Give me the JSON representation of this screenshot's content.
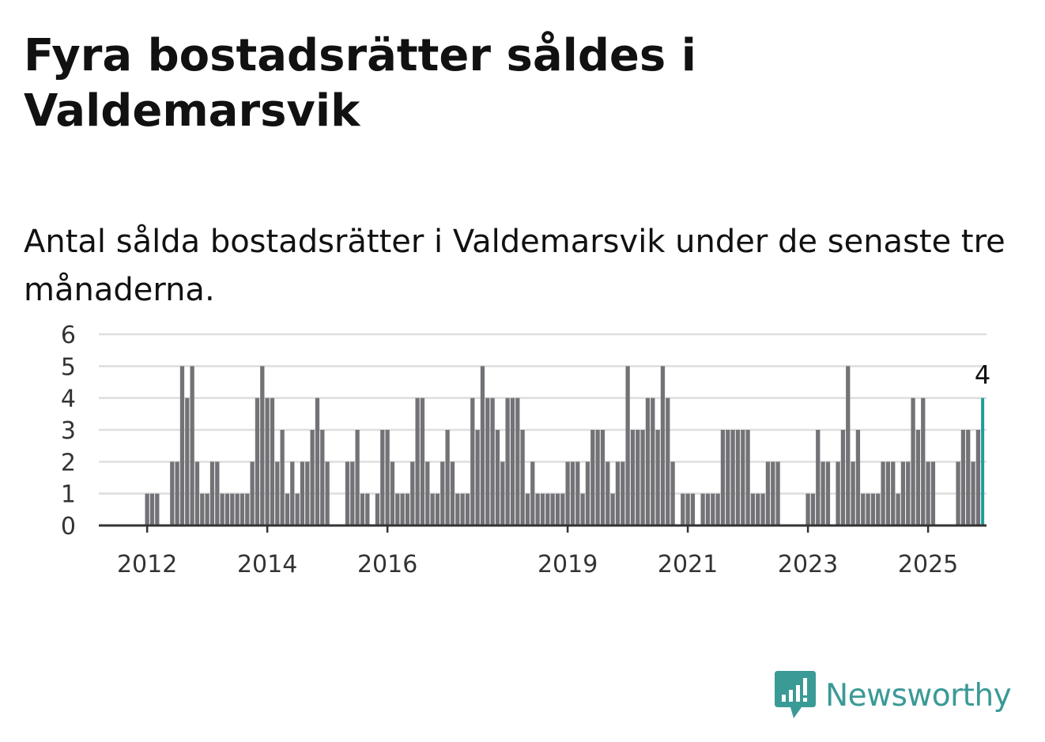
{
  "title": "Fyra bostadsrätter såldes i Valdemarsvik",
  "subtitle": "Antal sålda bostadsrätter i Valdemarsvik under de senaste tre månaderna.",
  "brand": {
    "name": "Newsworthy",
    "icon": "newsworthy-logo-icon",
    "color": "#3a9a96"
  },
  "chart_data": {
    "type": "bar",
    "x_start": "2011-04",
    "x_interval": "month",
    "values": [
      0,
      0,
      0,
      0,
      0,
      0,
      0,
      0,
      0,
      1,
      1,
      1,
      0,
      0,
      2,
      2,
      5,
      4,
      5,
      2,
      1,
      1,
      2,
      2,
      1,
      1,
      1,
      1,
      1,
      1,
      2,
      4,
      5,
      4,
      4,
      2,
      3,
      1,
      2,
      1,
      2,
      2,
      3,
      4,
      3,
      2,
      0,
      0,
      0,
      2,
      2,
      3,
      1,
      1,
      0,
      1,
      3,
      3,
      2,
      1,
      1,
      1,
      2,
      4,
      4,
      2,
      1,
      1,
      2,
      3,
      2,
      1,
      1,
      1,
      4,
      3,
      5,
      4,
      4,
      3,
      2,
      4,
      4,
      4,
      3,
      1,
      2,
      1,
      1,
      1,
      1,
      1,
      1,
      2,
      2,
      2,
      1,
      2,
      3,
      3,
      3,
      2,
      1,
      2,
      2,
      5,
      3,
      3,
      3,
      4,
      4,
      3,
      5,
      4,
      2,
      0,
      1,
      1,
      1,
      0,
      1,
      1,
      1,
      1,
      3,
      3,
      3,
      3,
      3,
      3,
      1,
      1,
      1,
      2,
      2,
      2,
      0,
      0,
      0,
      0,
      0,
      1,
      1,
      3,
      2,
      2,
      0,
      2,
      3,
      5,
      2,
      3,
      1,
      1,
      1,
      1,
      2,
      2,
      2,
      1,
      2,
      2,
      4,
      3,
      4,
      2,
      2,
      0,
      0,
      0,
      0,
      2,
      3,
      3,
      2,
      3,
      4
    ],
    "x_ticks": [
      "2012",
      "2014",
      "2016",
      "2019",
      "2021",
      "2023",
      "2025"
    ],
    "x_tick_months": [
      "2012-01",
      "2014-01",
      "2016-01",
      "2019-01",
      "2021-01",
      "2023-01",
      "2025-01"
    ],
    "y_ticks": [
      0,
      1,
      2,
      3,
      4,
      5,
      6
    ],
    "ylim": [
      0,
      6
    ],
    "grid": true,
    "bar_color": "#737277",
    "highlight_color": "#1e9e9a",
    "highlight_last": true,
    "last_value_label": "4",
    "xlabel": "",
    "ylabel": ""
  }
}
